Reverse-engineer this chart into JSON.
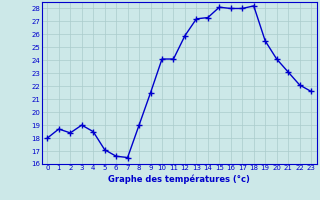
{
  "hours": [
    0,
    1,
    2,
    3,
    4,
    5,
    6,
    7,
    8,
    9,
    10,
    11,
    12,
    13,
    14,
    15,
    16,
    17,
    18,
    19,
    20,
    21,
    22,
    23
  ],
  "temps": [
    18,
    18.7,
    18.4,
    19,
    18.5,
    17.1,
    16.6,
    16.5,
    19,
    21.5,
    24.1,
    24.1,
    25.9,
    27.2,
    27.3,
    28.1,
    28.0,
    28.0,
    28.2,
    25.5,
    24.1,
    23.1,
    22.1,
    21.6
  ],
  "ylim_min": 16,
  "ylim_max": 28.5,
  "yticks": [
    16,
    17,
    18,
    19,
    20,
    21,
    22,
    23,
    24,
    25,
    26,
    27,
    28
  ],
  "xlabel": "Graphe des températures (°c)",
  "line_color": "#0000cc",
  "bg_color": "#cce8e8",
  "grid_color": "#aacccc",
  "axis_color": "#0000cc",
  "marker": "+",
  "marker_size": 4,
  "linewidth": 1.0
}
